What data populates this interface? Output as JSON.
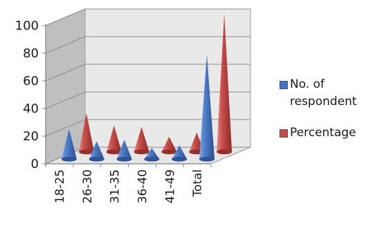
{
  "chart_data": {
    "type": "bar",
    "style": "3d-cone",
    "title": "",
    "xlabel": "",
    "ylabel": "",
    "categories": [
      "18-25",
      "26-30",
      "31-35",
      "36-40",
      "41-49",
      "Total"
    ],
    "series": [
      {
        "name": "No. of respondent",
        "color": "#4472c4",
        "values": [
          22,
          13,
          14,
          8,
          10,
          76
        ]
      },
      {
        "name": "Percentage",
        "color": "#c0504d",
        "values": [
          28,
          19,
          18,
          11,
          14,
          100
        ]
      }
    ],
    "ylim": [
      0,
      100
    ],
    "yticks": [
      "0",
      "20",
      "40",
      "60",
      "80",
      "100"
    ],
    "grid": true,
    "legend_position": "right"
  }
}
